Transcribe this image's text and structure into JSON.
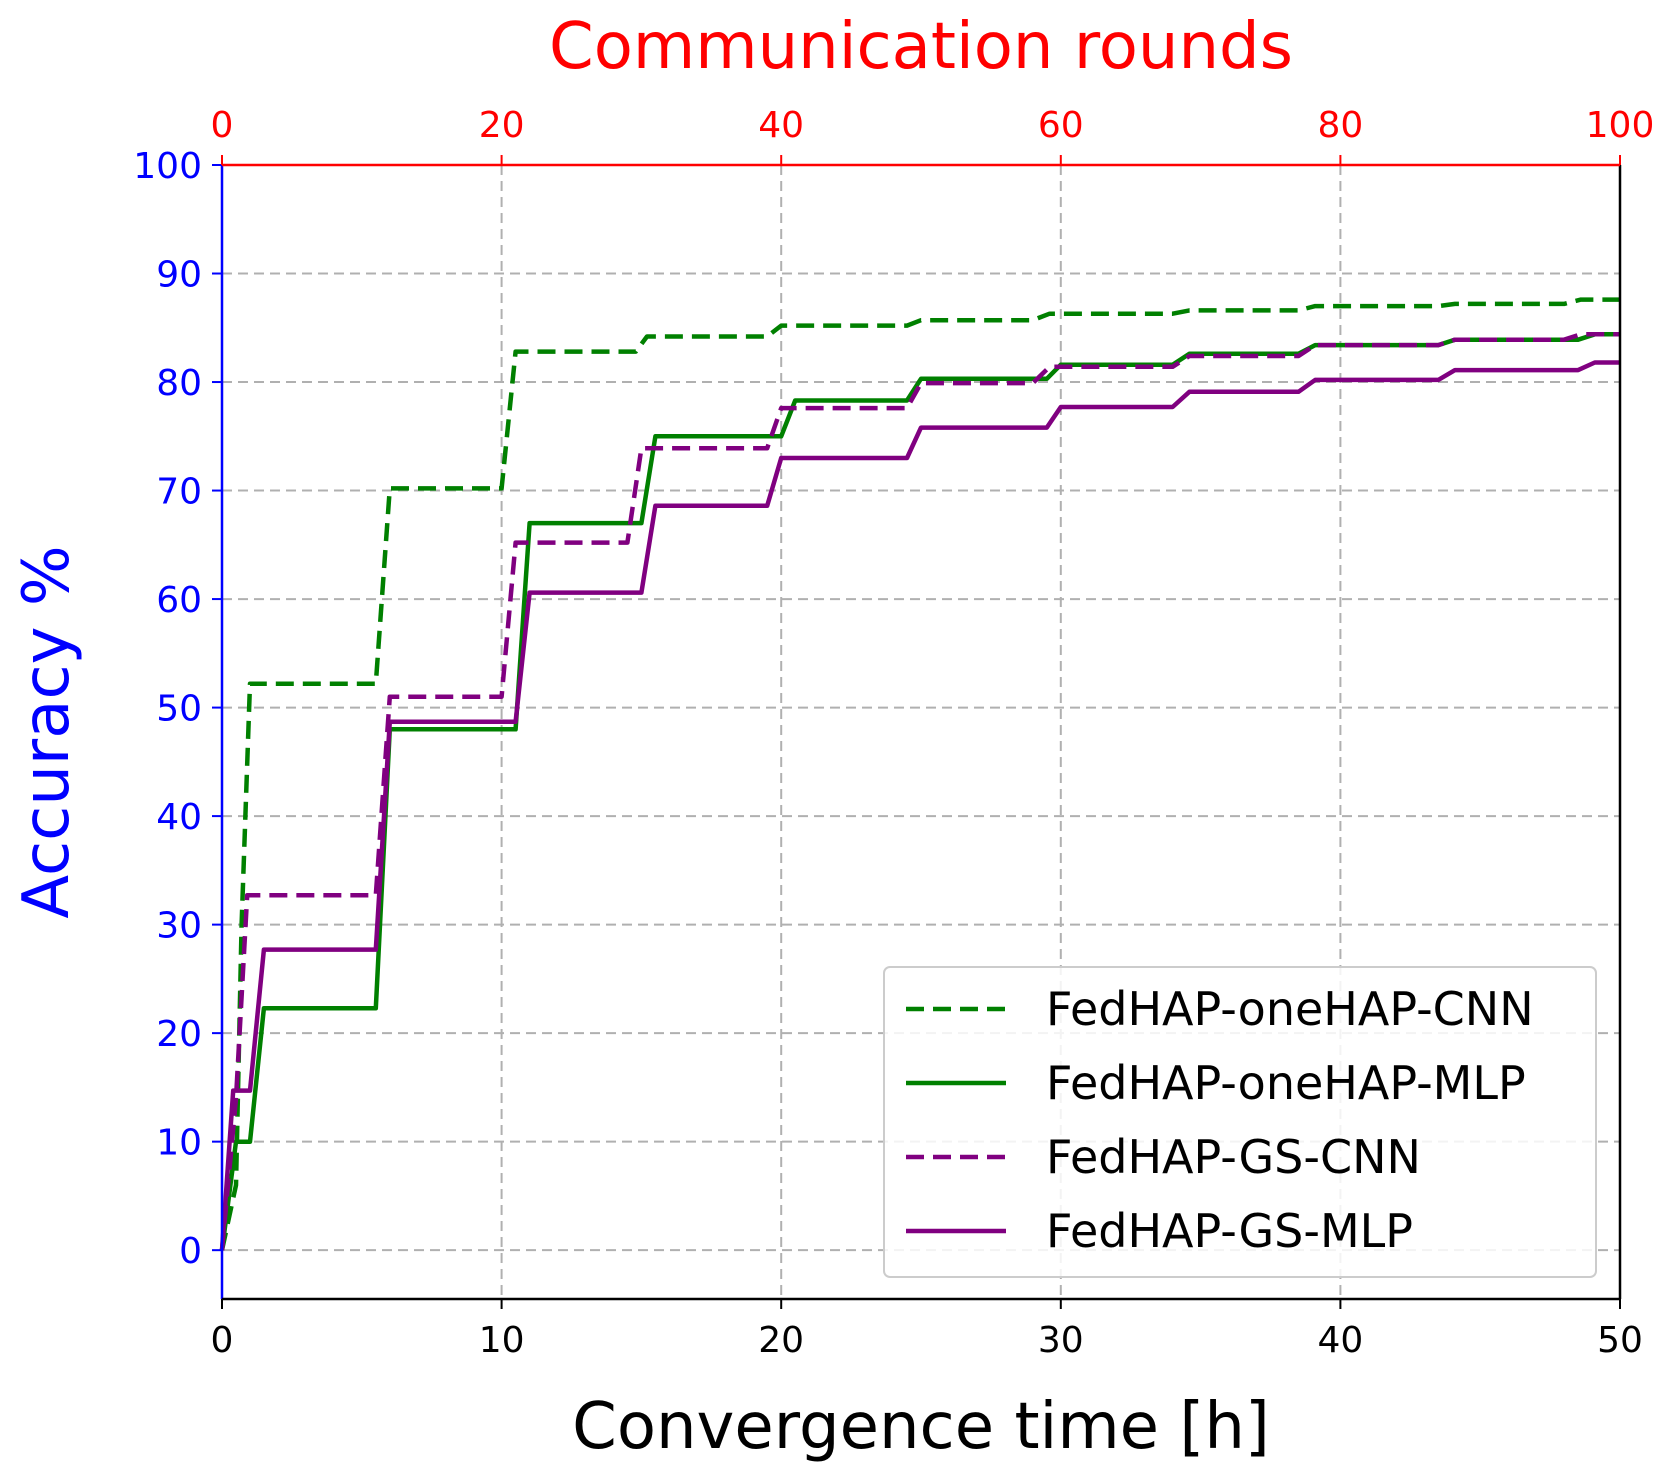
{
  "chart_data": {
    "type": "line",
    "xlabel": "Convergence time [h]",
    "ylabel": "Accuracy %",
    "top_xlabel": "Communication rounds",
    "xlim": [
      0,
      50
    ],
    "ylim": [
      -4.5,
      100
    ],
    "top_xlim": [
      0,
      100
    ],
    "xticks": [
      "0",
      "10",
      "20",
      "30",
      "40",
      "50"
    ],
    "yticks": [
      "0",
      "10",
      "20",
      "30",
      "40",
      "50",
      "60",
      "70",
      "80",
      "90",
      "100"
    ],
    "top_xticks": [
      "0",
      "20",
      "40",
      "60",
      "80",
      "100"
    ],
    "grid": true,
    "legend_position": "lower-right",
    "colors": {
      "green": "#008000",
      "purple": "#800080",
      "left_axis": "#0000ff",
      "top_axis": "#ff0000"
    },
    "series": [
      {
        "name": "FedHAP-oneHAP-CNN",
        "color": "#008000",
        "dash": true,
        "x": [
          0,
          0.5,
          0.7,
          1.0,
          5.5,
          6.0,
          10.0,
          10.5,
          14.8,
          15.2,
          19.5,
          20.0,
          24.5,
          25.0,
          29.0,
          29.6,
          34.0,
          34.6,
          38.5,
          39.1,
          43.5,
          44.1,
          48.0,
          48.6,
          50
        ],
        "y": [
          0,
          6,
          30,
          52.2,
          52.2,
          70.2,
          70.2,
          82.8,
          82.8,
          84.2,
          84.2,
          85.2,
          85.2,
          85.7,
          85.7,
          86.3,
          86.3,
          86.6,
          86.6,
          87.0,
          87.0,
          87.2,
          87.2,
          87.6,
          87.6
        ]
      },
      {
        "name": "FedHAP-oneHAP-MLP",
        "color": "#008000",
        "dash": false,
        "x": [
          0,
          0.5,
          1.0,
          1.5,
          5.5,
          6.0,
          10.5,
          11.0,
          15.0,
          15.5,
          20.0,
          20.5,
          24.5,
          25.0,
          29.5,
          30.0,
          34.0,
          34.6,
          38.5,
          39.1,
          43.5,
          44.1,
          48.5,
          49.1,
          50
        ],
        "y": [
          0,
          10,
          10,
          22.3,
          22.3,
          48,
          48,
          67,
          67,
          75,
          75,
          78.3,
          78.3,
          80.3,
          80.3,
          81.6,
          81.6,
          82.6,
          82.6,
          83.4,
          83.4,
          83.9,
          83.9,
          84.4,
          84.4
        ]
      },
      {
        "name": "FedHAP-GS-CNN",
        "color": "#800080",
        "dash": true,
        "x": [
          0,
          0.5,
          0.9,
          5.5,
          6.0,
          10.0,
          10.5,
          14.5,
          15.0,
          19.5,
          20.0,
          24.5,
          25.0,
          29.0,
          29.6,
          34.0,
          34.6,
          38.5,
          39.1,
          43.5,
          44.1,
          48.0,
          48.6,
          50
        ],
        "y": [
          0,
          14,
          32.7,
          32.7,
          51,
          51,
          65.2,
          65.2,
          73.9,
          73.9,
          77.6,
          77.6,
          79.9,
          79.9,
          81.4,
          81.4,
          82.4,
          82.4,
          83.4,
          83.4,
          83.9,
          83.9,
          84.4,
          84.4
        ]
      },
      {
        "name": "FedHAP-GS-MLP",
        "color": "#800080",
        "dash": false,
        "x": [
          0,
          0.4,
          1.0,
          1.5,
          5.5,
          6.0,
          10.5,
          11.0,
          15.0,
          15.5,
          19.5,
          20.0,
          24.5,
          25.0,
          29.5,
          30.0,
          34.0,
          34.6,
          38.5,
          39.1,
          43.5,
          44.1,
          48.5,
          49.1,
          50
        ],
        "y": [
          0,
          14.7,
          14.7,
          27.7,
          27.7,
          48.7,
          48.7,
          60.6,
          60.6,
          68.6,
          68.6,
          73,
          73,
          75.8,
          75.8,
          77.7,
          77.7,
          79.1,
          79.1,
          80.2,
          80.2,
          81.1,
          81.1,
          81.8,
          81.8
        ]
      }
    ]
  }
}
